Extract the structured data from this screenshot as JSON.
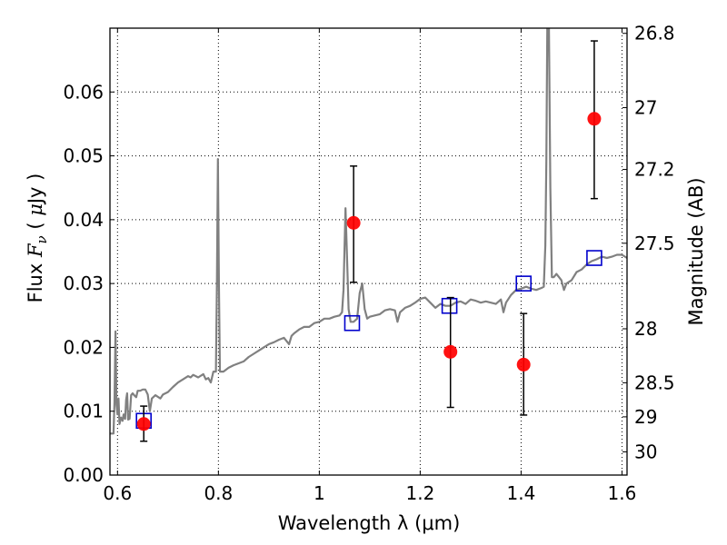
{
  "chart_data": {
    "type": "scatter",
    "xlabel": "Wavelength  λ (μm)",
    "ylabel": "Flux  F_ν  ( μJy )",
    "ylabel_parts": {
      "pre": "Flux  ",
      "sym": "F",
      "sub": "ν",
      "mid": "  ( ",
      "mu": "μ",
      "post": "Jy )"
    },
    "y2label": "Magnitude (AB)",
    "xlim": [
      0.585,
      1.61
    ],
    "ylim": [
      0.0,
      0.07
    ],
    "grid": true,
    "x_ticks": [
      0.6,
      0.8,
      1.0,
      1.2,
      1.4,
      1.6
    ],
    "x_tick_labels": [
      "0.6",
      "0.8",
      "1",
      "1.2",
      "1.4",
      "1.6"
    ],
    "y_ticks": [
      0.0,
      0.01,
      0.02,
      0.03,
      0.04,
      0.05,
      0.06
    ],
    "y_tick_labels": [
      "0.00",
      "0.01",
      "0.02",
      "0.03",
      "0.04",
      "0.05",
      "0.06"
    ],
    "y2_ticks": [
      {
        "mag": 26.8,
        "label": "26.8"
      },
      {
        "mag": 27.0,
        "label": "27"
      },
      {
        "mag": 27.2,
        "label": "27.2"
      },
      {
        "mag": 27.5,
        "label": "27.5"
      },
      {
        "mag": 28.0,
        "label": "28"
      },
      {
        "mag": 28.5,
        "label": "28.5"
      },
      {
        "mag": 29.0,
        "label": "29"
      },
      {
        "mag": 30.0,
        "label": "30"
      }
    ],
    "series": [
      {
        "kind": "line",
        "color": "#808080",
        "points": [
          [
            0.585,
            0.0065
          ],
          [
            0.592,
            0.0065
          ],
          [
            0.594,
            0.0115
          ],
          [
            0.596,
            0.0225
          ],
          [
            0.598,
            0.011
          ],
          [
            0.6,
            0.0095
          ],
          [
            0.602,
            0.012
          ],
          [
            0.604,
            0.008
          ],
          [
            0.607,
            0.009
          ],
          [
            0.61,
            0.0085
          ],
          [
            0.612,
            0.0095
          ],
          [
            0.615,
            0.0088
          ],
          [
            0.617,
            0.0118
          ],
          [
            0.619,
            0.0128
          ],
          [
            0.621,
            0.0087
          ],
          [
            0.624,
            0.0088
          ],
          [
            0.627,
            0.0125
          ],
          [
            0.63,
            0.0128
          ],
          [
            0.633,
            0.0125
          ],
          [
            0.637,
            0.0122
          ],
          [
            0.64,
            0.0132
          ],
          [
            0.645,
            0.0132
          ],
          [
            0.65,
            0.0134
          ],
          [
            0.655,
            0.0134
          ],
          [
            0.66,
            0.0126
          ],
          [
            0.664,
            0.01
          ],
          [
            0.668,
            0.012
          ],
          [
            0.675,
            0.0125
          ],
          [
            0.685,
            0.012
          ],
          [
            0.69,
            0.0126
          ],
          [
            0.7,
            0.013
          ],
          [
            0.71,
            0.0138
          ],
          [
            0.72,
            0.0145
          ],
          [
            0.73,
            0.015
          ],
          [
            0.74,
            0.0155
          ],
          [
            0.745,
            0.0153
          ],
          [
            0.75,
            0.0157
          ],
          [
            0.76,
            0.0153
          ],
          [
            0.77,
            0.0158
          ],
          [
            0.775,
            0.015
          ],
          [
            0.78,
            0.0152
          ],
          [
            0.785,
            0.0145
          ],
          [
            0.79,
            0.0162
          ],
          [
            0.795,
            0.0162
          ],
          [
            0.797,
            0.03
          ],
          [
            0.799,
            0.0495
          ],
          [
            0.801,
            0.03
          ],
          [
            0.803,
            0.0162
          ],
          [
            0.81,
            0.0162
          ],
          [
            0.82,
            0.0168
          ],
          [
            0.83,
            0.0172
          ],
          [
            0.84,
            0.0175
          ],
          [
            0.85,
            0.0178
          ],
          [
            0.86,
            0.0185
          ],
          [
            0.87,
            0.019
          ],
          [
            0.88,
            0.0195
          ],
          [
            0.89,
            0.02
          ],
          [
            0.9,
            0.0205
          ],
          [
            0.91,
            0.0208
          ],
          [
            0.92,
            0.0212
          ],
          [
            0.93,
            0.0215
          ],
          [
            0.94,
            0.0205
          ],
          [
            0.945,
            0.0218
          ],
          [
            0.95,
            0.0222
          ],
          [
            0.96,
            0.0228
          ],
          [
            0.97,
            0.0232
          ],
          [
            0.98,
            0.0232
          ],
          [
            0.99,
            0.0238
          ],
          [
            1.0,
            0.024
          ],
          [
            1.01,
            0.0245
          ],
          [
            1.02,
            0.0245
          ],
          [
            1.03,
            0.0248
          ],
          [
            1.04,
            0.025
          ],
          [
            1.045,
            0.0255
          ],
          [
            1.048,
            0.029
          ],
          [
            1.052,
            0.0418
          ],
          [
            1.055,
            0.034
          ],
          [
            1.058,
            0.026
          ],
          [
            1.062,
            0.024
          ],
          [
            1.068,
            0.024
          ],
          [
            1.075,
            0.0245
          ],
          [
            1.08,
            0.0285
          ],
          [
            1.085,
            0.03
          ],
          [
            1.09,
            0.026
          ],
          [
            1.095,
            0.0245
          ],
          [
            1.1,
            0.0248
          ],
          [
            1.11,
            0.025
          ],
          [
            1.12,
            0.0252
          ],
          [
            1.13,
            0.0258
          ],
          [
            1.14,
            0.026
          ],
          [
            1.15,
            0.0258
          ],
          [
            1.155,
            0.024
          ],
          [
            1.16,
            0.0255
          ],
          [
            1.17,
            0.0262
          ],
          [
            1.18,
            0.0265
          ],
          [
            1.19,
            0.027
          ],
          [
            1.2,
            0.0276
          ],
          [
            1.21,
            0.0278
          ],
          [
            1.22,
            0.027
          ],
          [
            1.23,
            0.0262
          ],
          [
            1.24,
            0.0268
          ],
          [
            1.25,
            0.0265
          ],
          [
            1.26,
            0.0265
          ],
          [
            1.27,
            0.027
          ],
          [
            1.28,
            0.0272
          ],
          [
            1.29,
            0.0268
          ],
          [
            1.3,
            0.0275
          ],
          [
            1.31,
            0.0273
          ],
          [
            1.32,
            0.027
          ],
          [
            1.33,
            0.0272
          ],
          [
            1.34,
            0.027
          ],
          [
            1.35,
            0.0268
          ],
          [
            1.36,
            0.0275
          ],
          [
            1.365,
            0.0255
          ],
          [
            1.37,
            0.027
          ],
          [
            1.38,
            0.0282
          ],
          [
            1.39,
            0.029
          ],
          [
            1.4,
            0.0292
          ],
          [
            1.41,
            0.0295
          ],
          [
            1.42,
            0.0292
          ],
          [
            1.43,
            0.029
          ],
          [
            1.44,
            0.0293
          ],
          [
            1.445,
            0.0295
          ],
          [
            1.448,
            0.036
          ],
          [
            1.45,
            0.049
          ],
          [
            1.452,
            0.071
          ],
          [
            1.455,
            0.071
          ],
          [
            1.458,
            0.045
          ],
          [
            1.461,
            0.031
          ],
          [
            1.465,
            0.031
          ],
          [
            1.47,
            0.0315
          ],
          [
            1.475,
            0.031
          ],
          [
            1.48,
            0.0305
          ],
          [
            1.485,
            0.029
          ],
          [
            1.49,
            0.03
          ],
          [
            1.5,
            0.0305
          ],
          [
            1.51,
            0.0318
          ],
          [
            1.52,
            0.0322
          ],
          [
            1.53,
            0.033
          ],
          [
            1.54,
            0.0335
          ],
          [
            1.55,
            0.0338
          ],
          [
            1.56,
            0.0342
          ],
          [
            1.57,
            0.034
          ],
          [
            1.58,
            0.0342
          ],
          [
            1.59,
            0.0345
          ],
          [
            1.6,
            0.0345
          ],
          [
            1.61,
            0.034
          ]
        ]
      },
      {
        "kind": "squares",
        "color": "#0000cc",
        "points": [
          [
            0.652,
            0.0085
          ],
          [
            1.065,
            0.0238
          ],
          [
            1.258,
            0.0265
          ],
          [
            1.405,
            0.03
          ],
          [
            1.545,
            0.034
          ]
        ]
      },
      {
        "kind": "errorbar",
        "color": "#ff0000",
        "points": [
          {
            "x": 0.652,
            "y": 0.008,
            "lo": 0.0053,
            "hi": 0.0108
          },
          {
            "x": 1.068,
            "y": 0.0395,
            "lo": 0.0302,
            "hi": 0.0484
          },
          {
            "x": 1.26,
            "y": 0.0193,
            "lo": 0.0106,
            "hi": 0.0278
          },
          {
            "x": 1.405,
            "y": 0.0173,
            "lo": 0.0094,
            "hi": 0.0253
          },
          {
            "x": 1.545,
            "y": 0.0558,
            "lo": 0.0433,
            "hi": 0.068
          }
        ]
      }
    ]
  }
}
